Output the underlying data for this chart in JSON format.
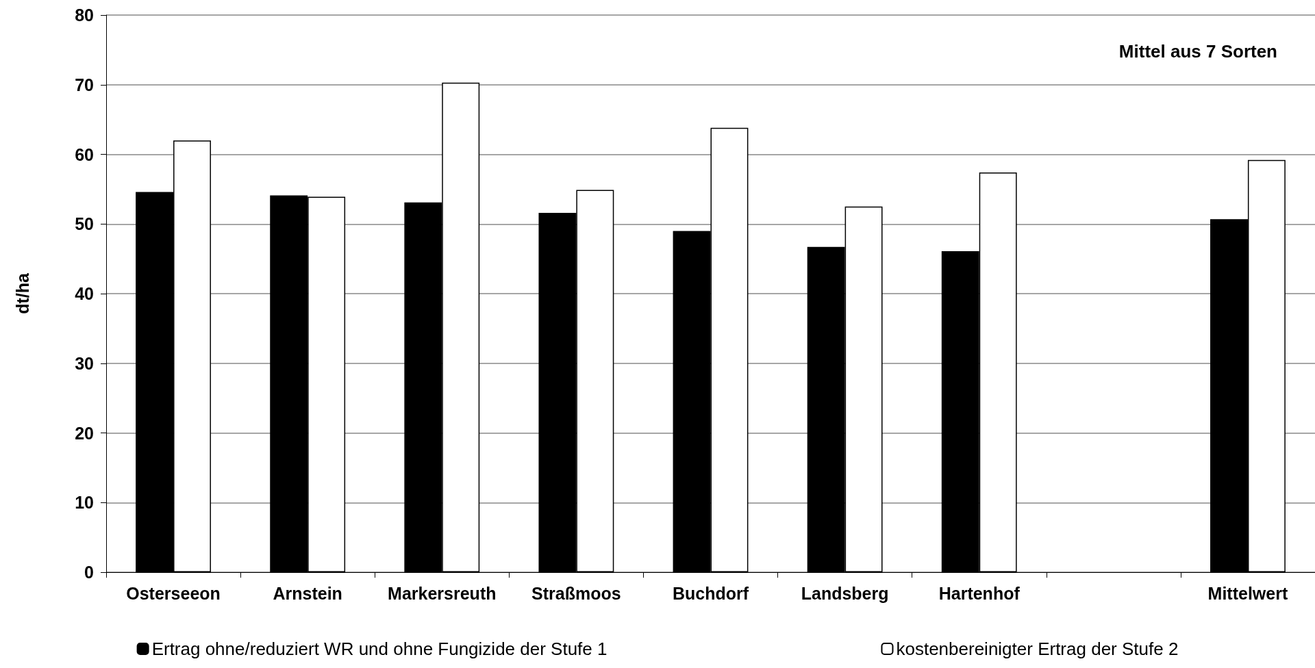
{
  "chart_data": {
    "type": "bar",
    "ylabel": "dt/ha",
    "annotations": [
      "Mittel aus 7 Sorten"
    ],
    "categories": [
      "Osterseeon",
      "Arnstein",
      "Markersreuth",
      "Straßmoos",
      "Buchdorf",
      "Landsberg",
      "Hartenhof",
      null,
      "Mittelwert"
    ],
    "series": [
      {
        "name": "Ertrag ohne/reduziert WR und ohne Fungizide der Stufe 1",
        "color": "#000000",
        "values": [
          54.6,
          54.1,
          53.1,
          51.6,
          49.0,
          46.7,
          46.1,
          null,
          50.7
        ]
      },
      {
        "name": "kostenbereinigter Ertrag der Stufe 2",
        "color": "#ffffff",
        "values": [
          62.0,
          53.9,
          70.3,
          54.9,
          63.8,
          52.5,
          57.4,
          null,
          59.2
        ]
      }
    ],
    "ylim": [
      0,
      80
    ],
    "yticks": [
      0,
      10,
      20,
      30,
      40,
      50,
      60,
      70,
      80
    ],
    "grid": "y",
    "legend": "bottom"
  }
}
